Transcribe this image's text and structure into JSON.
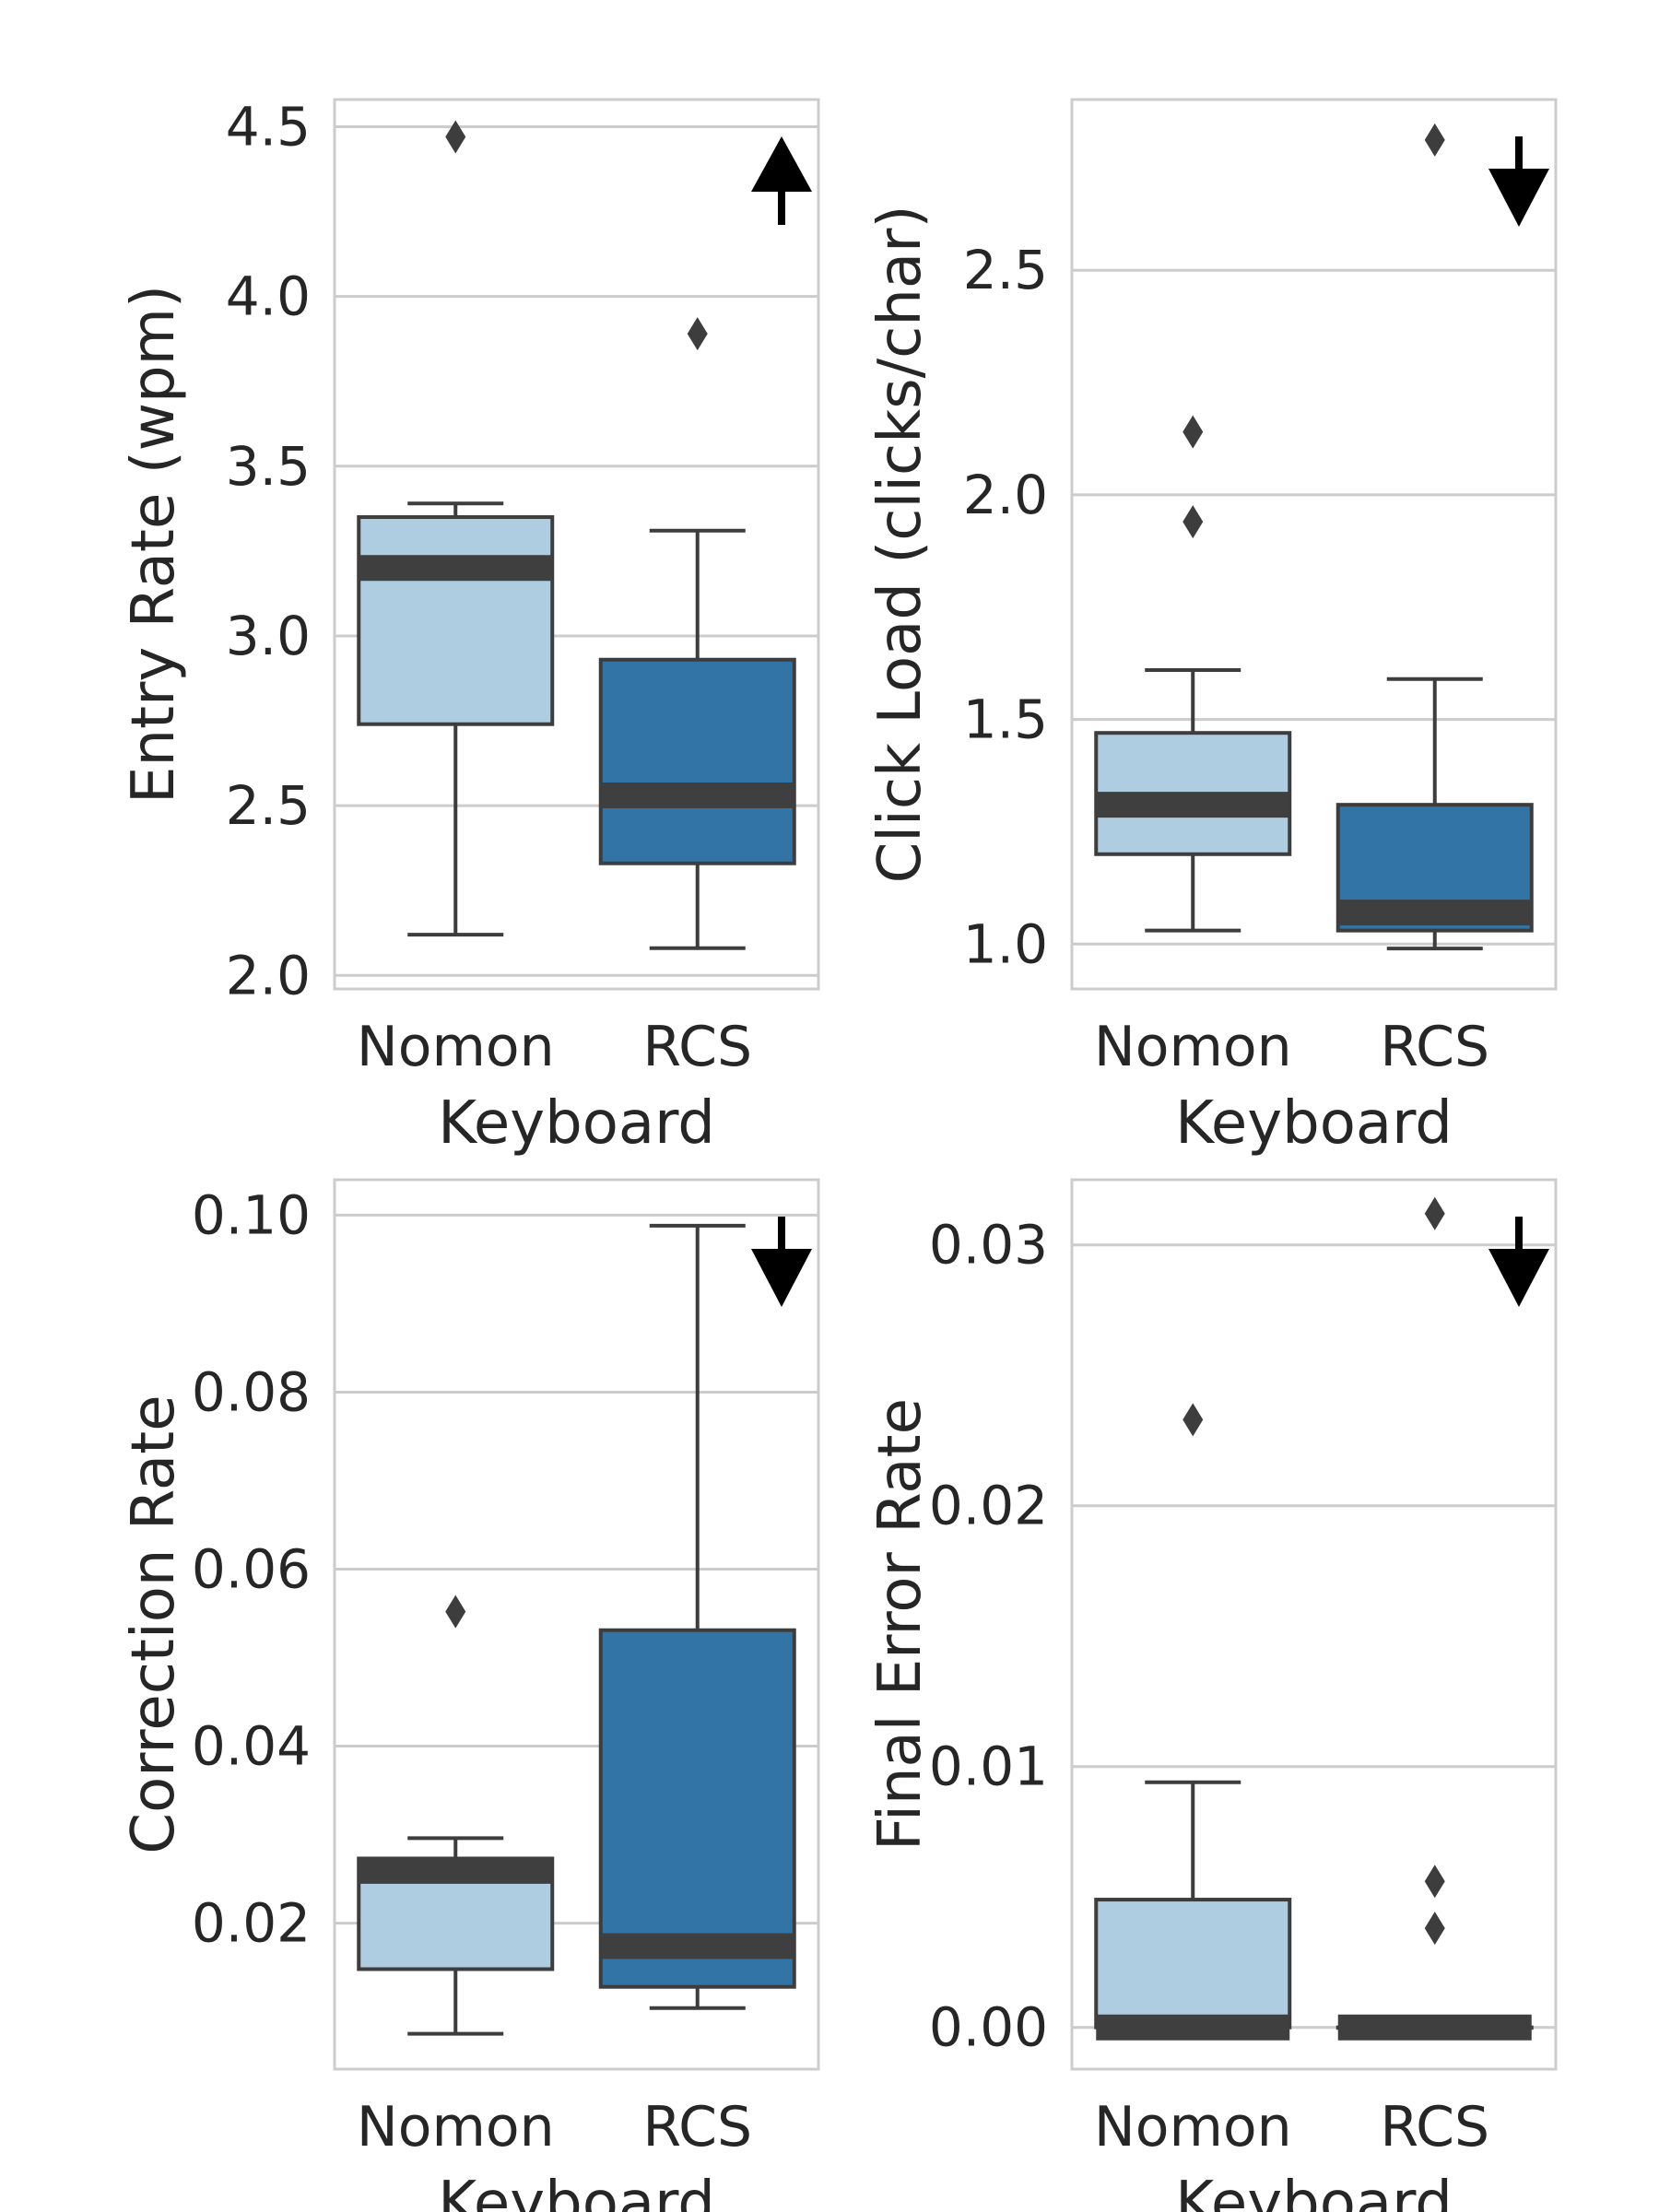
{
  "figure": {
    "colors": {
      "nomon": "#afcde0",
      "rcs": "#3174a5",
      "median": "#3f3f3f",
      "line": "#3d3d3d",
      "grid": "#cccccc",
      "arrow": "#000000"
    }
  },
  "chart_data": [
    {
      "type": "box",
      "xlabel": "Keyboard",
      "ylabel": "Entry Rate (wpm)",
      "categories": [
        "Nomon",
        "RCS"
      ],
      "ylim": [
        1.96,
        4.58
      ],
      "yticks": [
        2.0,
        2.5,
        3.0,
        3.5,
        4.0,
        4.5
      ],
      "ytick_labels": [
        "2.0",
        "2.5",
        "3.0",
        "3.5",
        "4.0",
        "4.5"
      ],
      "grid": true,
      "arrow": "up",
      "boxes": [
        {
          "category": "Nomon",
          "whisker_low": 2.12,
          "q1": 2.74,
          "median": 3.2,
          "q3": 3.35,
          "whisker_high": 3.39,
          "outliers": [
            4.47
          ]
        },
        {
          "category": "RCS",
          "whisker_low": 2.08,
          "q1": 2.33,
          "median": 2.53,
          "q3": 2.93,
          "whisker_high": 3.31,
          "outliers": [
            3.89
          ]
        }
      ]
    },
    {
      "type": "box",
      "xlabel": "Keyboard",
      "ylabel": "Click Load (clicks/char)",
      "categories": [
        "Nomon",
        "RCS"
      ],
      "ylim": [
        0.9,
        2.88
      ],
      "yticks": [
        1.0,
        1.5,
        2.0,
        2.5
      ],
      "ytick_labels": [
        "1.0",
        "1.5",
        "2.0",
        "2.5"
      ],
      "grid": true,
      "arrow": "down",
      "boxes": [
        {
          "category": "Nomon",
          "whisker_low": 1.03,
          "q1": 1.2,
          "median": 1.31,
          "q3": 1.47,
          "whisker_high": 1.61,
          "outliers": [
            1.94,
            2.14
          ]
        },
        {
          "category": "RCS",
          "whisker_low": 0.99,
          "q1": 1.03,
          "median": 1.07,
          "q3": 1.31,
          "whisker_high": 1.59,
          "outliers": [
            2.79
          ]
        }
      ]
    },
    {
      "type": "box",
      "xlabel": "Keyboard",
      "ylabel": "Correction Rate",
      "categories": [
        "Nomon",
        "RCS"
      ],
      "ylim": [
        0.0035,
        0.104
      ],
      "yticks": [
        0.02,
        0.04,
        0.06,
        0.08,
        0.1
      ],
      "ytick_labels": [
        "0.02",
        "0.04",
        "0.06",
        "0.08",
        "0.10"
      ],
      "grid": true,
      "arrow": "down",
      "boxes": [
        {
          "category": "Nomon",
          "whisker_low": 0.0075,
          "q1": 0.0148,
          "median": 0.0259,
          "q3": 0.0273,
          "whisker_high": 0.0296,
          "outliers": [
            0.0552
          ]
        },
        {
          "category": "RCS",
          "whisker_low": 0.0104,
          "q1": 0.0128,
          "median": 0.0174,
          "q3": 0.0531,
          "whisker_high": 0.0988,
          "outliers": []
        }
      ]
    },
    {
      "type": "box",
      "xlabel": "Keyboard",
      "ylabel": "Final Error Rate",
      "categories": [
        "Nomon",
        "RCS"
      ],
      "ylim": [
        -0.0016,
        0.0325
      ],
      "yticks": [
        0.0,
        0.01,
        0.02,
        0.03
      ],
      "ytick_labels": [
        "0.00",
        "0.01",
        "0.02",
        "0.03"
      ],
      "grid": true,
      "arrow": "down",
      "boxes": [
        {
          "category": "Nomon",
          "whisker_low": 0.0,
          "q1": 0.0,
          "median": 0.0,
          "q3": 0.0049,
          "whisker_high": 0.0094,
          "outliers": [
            0.0233
          ]
        },
        {
          "category": "RCS",
          "whisker_low": 0.0,
          "q1": 0.0,
          "median": 0.0,
          "q3": 0.0,
          "whisker_high": 0.0,
          "outliers": [
            0.0038,
            0.0056,
            0.0312
          ]
        }
      ]
    }
  ]
}
